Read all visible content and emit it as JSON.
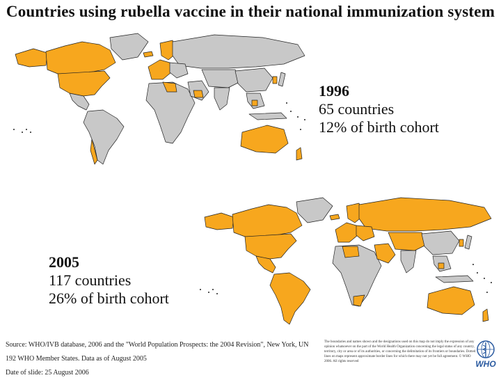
{
  "title": "Countries using rubella vaccine in their national immunization system",
  "colors": {
    "using_vaccine": "#f7a71e",
    "not_using": "#c8c8c8",
    "border": "#222222"
  },
  "maps": [
    {
      "year": "1996",
      "countries": "65 countries",
      "cohort": "12% of birth cohort",
      "highlighted_regions": [
        "North America",
        "Europe (west)",
        "Middle East (part)",
        "Australia",
        "East Asia (part)"
      ]
    },
    {
      "year": "2005",
      "countries": "117 countries",
      "cohort": "26% of birth cohort",
      "highlighted_regions": [
        "North America",
        "Central and South America",
        "Europe",
        "Russia",
        "Middle East",
        "Australia",
        "Southeast Asia (part)"
      ]
    }
  ],
  "footer": {
    "source": "Source: WHO/IVB database, 2006 and the \"World Population Prospects: the 2004 Revision\", New York, UN",
    "member_states": "192 WHO Member States. Data as of August 2005",
    "date_of_slide": "Date of slide: 25 August 2006"
  },
  "disclaimer": "The boundaries and names shown and the designations used on this map do not imply the expression of any opinion whatsoever on the part of the World Health Organization concerning the legal status of any country, territory, city or area or of its authorities, or concerning the delimitation of its frontiers or boundaries. Dotted lines on maps represent approximate border lines for which there may not yet be full agreement. © WHO 2006. All rights reserved",
  "logo": {
    "icon": "who-emblem-icon",
    "text": "WHO"
  }
}
